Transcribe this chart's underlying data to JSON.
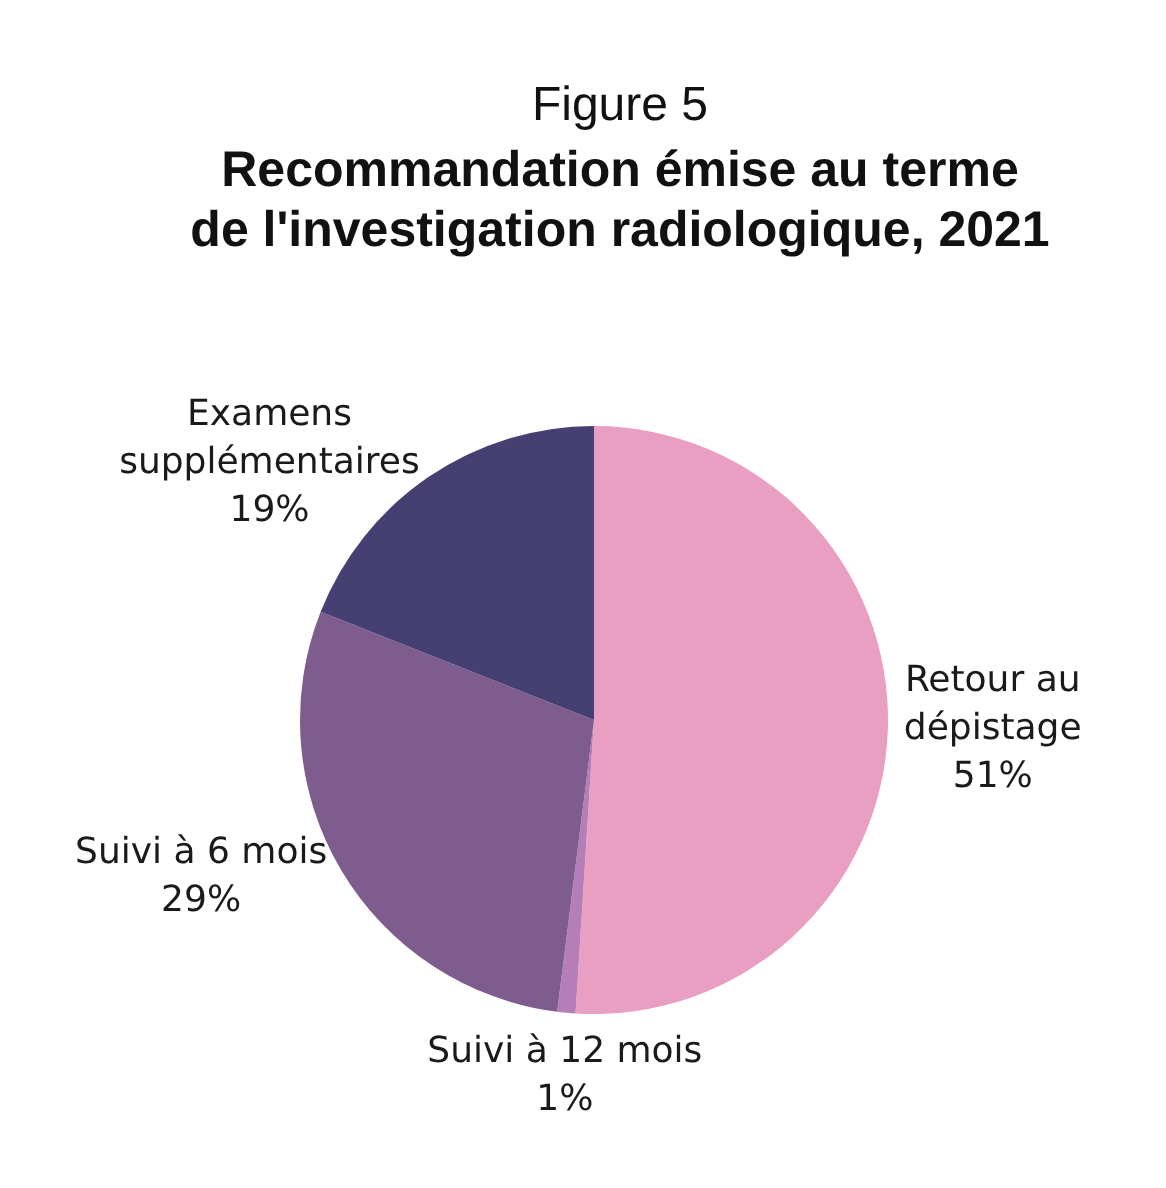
{
  "chart_data": {
    "type": "pie",
    "title": "Recommandation émise au terme de l'investigation radiologique, 2021",
    "annotations": [
      "Figure 5"
    ],
    "categories": [
      "Retour au dépistage",
      "Suivi à 12 mois",
      "Suivi à 6 mois",
      "Examens supplémentaires"
    ],
    "values": [
      51,
      1,
      29,
      19
    ],
    "colors": [
      "#e99fc2",
      "#b57eb8",
      "#7e5c8e",
      "#463f72"
    ],
    "value_labels": [
      "51%",
      "1%",
      "29%",
      "19%"
    ],
    "legend": false
  }
}
